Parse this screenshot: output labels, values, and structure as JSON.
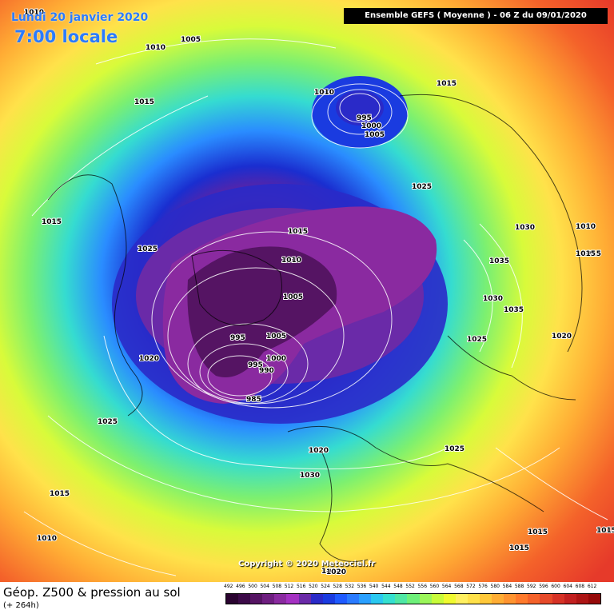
{
  "header": {
    "date_label": "Lundi 20 janvier 2020",
    "time_label": "7:00 locale",
    "model_run": "Ensemble GEFS  ( Moyenne )  -  06 Z du 09/01/2020"
  },
  "map": {
    "copyright": "Copyright © 2020 Meteociel.fr",
    "pressure_labels": [
      "1010",
      "1005",
      "1010",
      "1015",
      "1010",
      "995",
      "1000",
      "1005",
      "1015",
      "1025",
      "1015",
      "1025",
      "1015",
      "1010",
      "1005",
      "995",
      "1005",
      "1000",
      "995",
      "990",
      "985",
      "1020",
      "1025",
      "1020",
      "1030",
      "1015",
      "1010",
      "1025",
      "1020",
      "1015",
      "1030",
      "1010",
      "1015",
      "1035",
      "1030",
      "1035",
      "1025",
      "1020",
      "1015",
      "1015",
      "1015",
      "1020"
    ]
  },
  "footer": {
    "title": "Géop. Z500 & pression au sol",
    "subtitle": "(+ 264h)"
  },
  "legend": {
    "values": [
      "492",
      "496",
      "500",
      "504",
      "508",
      "512",
      "516",
      "520",
      "524",
      "528",
      "532",
      "536",
      "540",
      "544",
      "548",
      "552",
      "556",
      "560",
      "564",
      "568",
      "572",
      "576",
      "580",
      "584",
      "588",
      "592",
      "596",
      "600",
      "604",
      "608",
      "612"
    ],
    "colors": [
      "#2a0330",
      "#3c0a48",
      "#551463",
      "#6e1e80",
      "#8a2aa0",
      "#a431c2",
      "#6a2aa8",
      "#2a2ac8",
      "#1a3be0",
      "#1f5aff",
      "#2a7bff",
      "#2aa0ff",
      "#2ac8f0",
      "#35e0d0",
      "#4fe7a5",
      "#6ef07a",
      "#9bf65a",
      "#c8fb3a",
      "#f0fa30",
      "#fff060",
      "#ffe14a",
      "#ffc83a",
      "#ffad34",
      "#ff9430",
      "#ff7a2c",
      "#f4622a",
      "#e64a2a",
      "#d63226",
      "#c22020",
      "#ad1515",
      "#960a0a"
    ]
  }
}
